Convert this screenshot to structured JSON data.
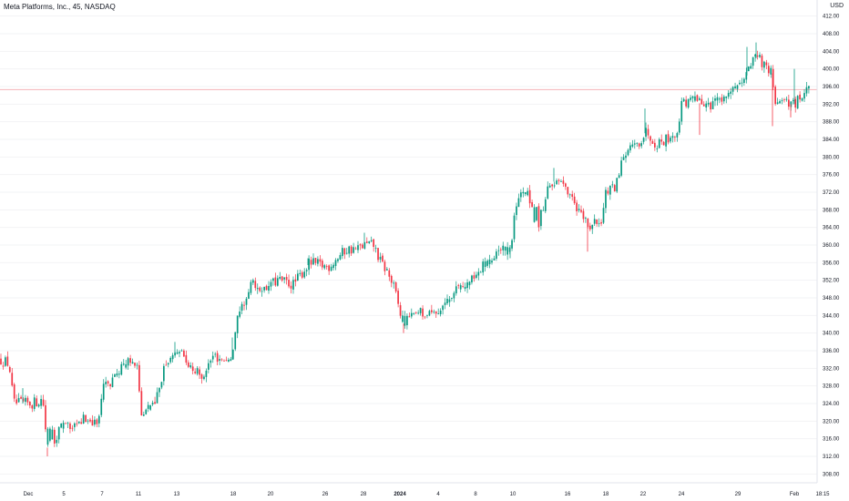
{
  "chart_data": {
    "type": "candlestick",
    "title": "Meta Platforms, Inc., 45, NASDAQ",
    "currency": "USD",
    "ylim": [
      306,
      414
    ],
    "y_ticks": [
      "412.00",
      "408.00",
      "404.00",
      "400.00",
      "396.00",
      "392.00",
      "388.00",
      "384.00",
      "380.00",
      "376.00",
      "372.00",
      "368.00",
      "364.00",
      "360.00",
      "356.00",
      "352.00",
      "348.00",
      "344.00",
      "340.00",
      "336.00",
      "332.00",
      "328.00",
      "324.00",
      "320.00",
      "316.00",
      "312.00",
      "308.00"
    ],
    "x_ticks": [
      "Dec",
      "5",
      "7",
      "11",
      "13",
      "18",
      "20",
      "26",
      "28",
      "2024",
      "4",
      "8",
      "10",
      "16",
      "18",
      "22",
      "24",
      "29",
      "Feb",
      "18:15"
    ],
    "price_line": 395.3,
    "colors": {
      "up": "#089981",
      "down": "#f23645",
      "price_line": "#f4b2b8",
      "grid": "#f2f3f5"
    },
    "close_path": [
      [
        0,
        334
      ],
      [
        10,
        333
      ],
      [
        15,
        324
      ],
      [
        25,
        324
      ],
      [
        35,
        324
      ],
      [
        47,
        325
      ],
      [
        52,
        314
      ],
      [
        70,
        319
      ],
      [
        80,
        318
      ],
      [
        95,
        321
      ],
      [
        108,
        319
      ],
      [
        112,
        328
      ],
      [
        125,
        329
      ],
      [
        135,
        333
      ],
      [
        150,
        334
      ],
      [
        155,
        322
      ],
      [
        170,
        324
      ],
      [
        180,
        332
      ],
      [
        195,
        336
      ],
      [
        212,
        332
      ],
      [
        220,
        330
      ],
      [
        235,
        335
      ],
      [
        245,
        334
      ],
      [
        255,
        334
      ],
      [
        260,
        344
      ],
      [
        268,
        346
      ],
      [
        275,
        351
      ],
      [
        290,
        350
      ],
      [
        305,
        352
      ],
      [
        322,
        351
      ],
      [
        340,
        356
      ],
      [
        360,
        355
      ],
      [
        380,
        359
      ],
      [
        392,
        359
      ],
      [
        400,
        360
      ],
      [
        410,
        360
      ],
      [
        418,
        356
      ],
      [
        425,
        354
      ],
      [
        433,
        350
      ],
      [
        442,
        342
      ],
      [
        455,
        344
      ],
      [
        465,
        345
      ],
      [
        480,
        345
      ],
      [
        497,
        349
      ],
      [
        515,
        352
      ],
      [
        530,
        355
      ],
      [
        545,
        358
      ],
      [
        555,
        359
      ],
      [
        560,
        357
      ],
      [
        565,
        368
      ],
      [
        575,
        372
      ],
      [
        582,
        369
      ],
      [
        590,
        364
      ],
      [
        600,
        372
      ],
      [
        610,
        375
      ],
      [
        622,
        372
      ],
      [
        630,
        369
      ],
      [
        640,
        366
      ],
      [
        648,
        364
      ],
      [
        660,
        366
      ],
      [
        665,
        372
      ],
      [
        675,
        373
      ],
      [
        684,
        380
      ],
      [
        700,
        383
      ],
      [
        710,
        386
      ],
      [
        720,
        383
      ],
      [
        730,
        384
      ],
      [
        745,
        386
      ],
      [
        748,
        392
      ],
      [
        760,
        393
      ],
      [
        770,
        392
      ],
      [
        780,
        392
      ],
      [
        795,
        394
      ],
      [
        805,
        395
      ],
      [
        815,
        396
      ],
      [
        825,
        401
      ],
      [
        832,
        403
      ],
      [
        840,
        400
      ],
      [
        848,
        399
      ],
      [
        850,
        392
      ],
      [
        858,
        394
      ],
      [
        865,
        392
      ],
      [
        872,
        392
      ],
      [
        880,
        394
      ],
      [
        888,
        395
      ]
    ],
    "bullish_segments": [
      [
        50,
        75
      ],
      [
        110,
        150
      ],
      [
        156,
        200
      ],
      [
        255,
        300
      ],
      [
        440,
        560
      ],
      [
        562,
        615
      ],
      [
        658,
        700
      ],
      [
        740,
        830
      ],
      [
        855,
        870
      ]
    ],
    "spikes": [
      [
        25,
        327.5
      ],
      [
        52,
        312
      ],
      [
        192,
        338
      ],
      [
        255,
        339
      ],
      [
        338,
        357
      ],
      [
        400,
        362.8
      ],
      [
        443,
        340
      ],
      [
        560,
        360
      ],
      [
        608,
        377.5
      ],
      [
        645,
        358.5
      ],
      [
        708,
        391
      ],
      [
        768,
        385
      ],
      [
        820,
        405
      ],
      [
        830,
        406
      ],
      [
        848,
        387
      ],
      [
        868,
        389
      ],
      [
        872,
        400
      ]
    ]
  }
}
